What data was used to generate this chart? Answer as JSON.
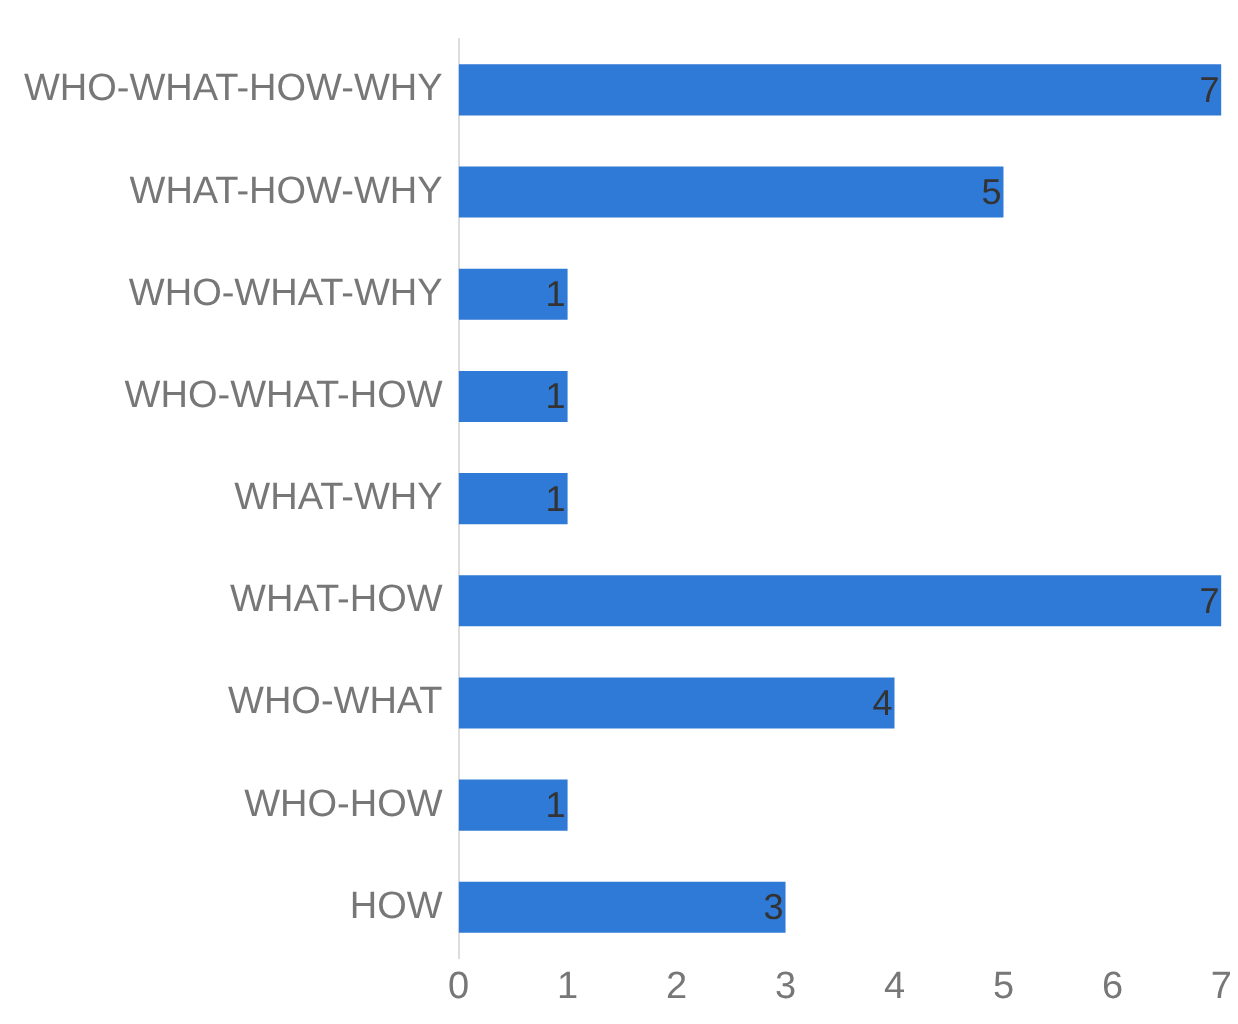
{
  "chart_data": {
    "type": "bar",
    "orientation": "horizontal",
    "categories": [
      "WHO-WHAT-HOW-WHY",
      "WHAT-HOW-WHY",
      "WHO-WHAT-WHY",
      "WHO-WHAT-HOW",
      "WHAT-WHY",
      "WHAT-HOW",
      "WHO-WHAT",
      "WHO-HOW",
      "HOW"
    ],
    "values": [
      7,
      5,
      1,
      1,
      1,
      7,
      4,
      1,
      3
    ],
    "color": "#2f7ad6",
    "xlim": [
      0,
      7
    ],
    "xticks": [
      0,
      1,
      2,
      3,
      4,
      5,
      6,
      7
    ],
    "grid": false,
    "data_labels": true
  }
}
